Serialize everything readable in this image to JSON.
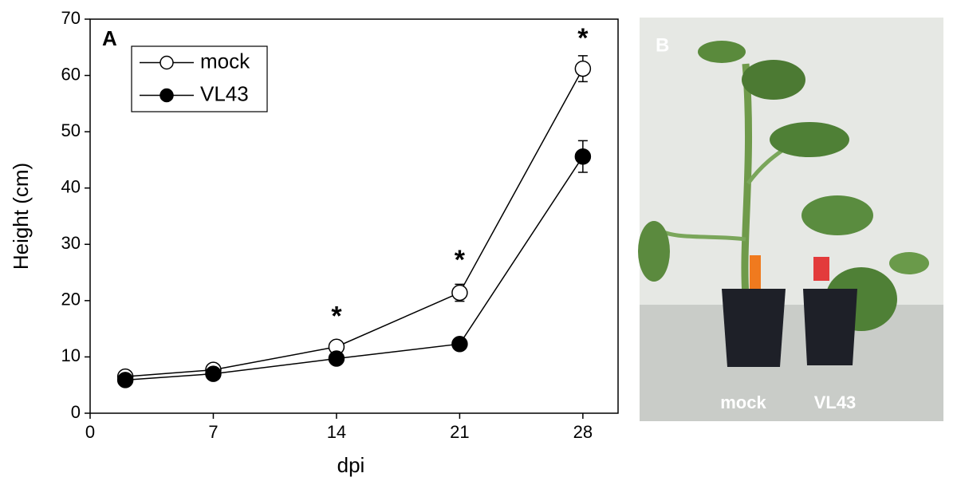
{
  "chart_data": {
    "type": "line",
    "panel_label": "A",
    "x_label": "dpi",
    "y_label": "Height (cm)",
    "x": [
      2,
      7,
      14,
      21,
      28
    ],
    "series": [
      {
        "name": "mock",
        "color": "#000000",
        "marker": "open",
        "values": [
          6.5,
          7.7,
          11.8,
          21.4,
          61.2
        ],
        "errors": [
          0.5,
          0.5,
          0.8,
          1.5,
          2.3
        ]
      },
      {
        "name": "VL43",
        "color": "#000000",
        "marker": "filled",
        "values": [
          5.9,
          7.0,
          9.7,
          12.3,
          45.6
        ],
        "errors": [
          0.5,
          0.5,
          0.5,
          0.5,
          2.8
        ]
      }
    ],
    "xlim": [
      0,
      30
    ],
    "xticks": [
      0,
      7,
      14,
      21,
      28
    ],
    "ylim": [
      0,
      70
    ],
    "yticks": [
      0,
      10,
      20,
      30,
      40,
      50,
      60,
      70
    ],
    "legend": "upper left",
    "annotations": [
      {
        "text": "*",
        "x": 14,
        "y": 16.9
      },
      {
        "text": "*",
        "x": 21,
        "y": 26.9
      },
      {
        "text": "*",
        "x": 28,
        "y": 66.3
      }
    ]
  },
  "photo": {
    "panel_label": "B",
    "captions": [
      "mock",
      "VL43"
    ]
  }
}
